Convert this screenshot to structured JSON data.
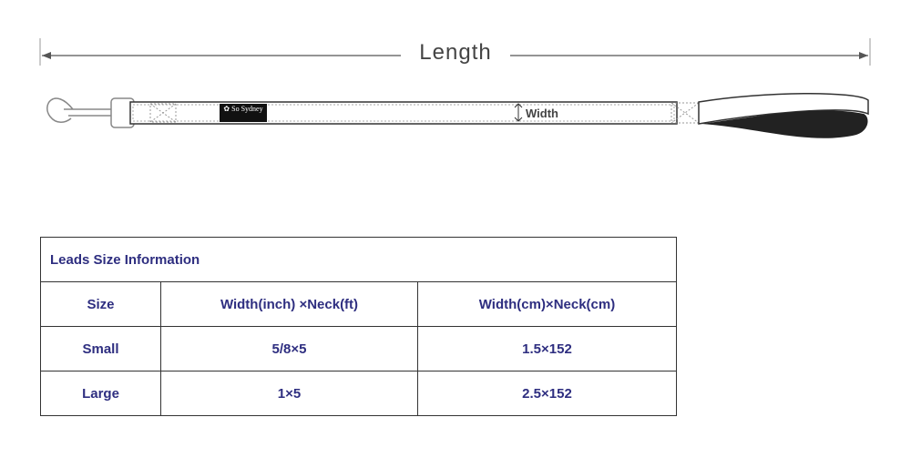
{
  "diagram": {
    "length_label": "Length",
    "width_label": "Width",
    "brand_label": "So Sydney"
  },
  "table": {
    "title": "Leads Size Information",
    "headers": [
      "Size",
      "Width(inch) ×Neck(ft)",
      "Width(cm)×Neck(cm)"
    ],
    "rows": [
      [
        "Small",
        "5/8×5",
        "1.5×152"
      ],
      [
        "Large",
        "1×5",
        "2.5×152"
      ]
    ]
  },
  "colors": {
    "text": "#2e2e80",
    "border": "#333333"
  }
}
